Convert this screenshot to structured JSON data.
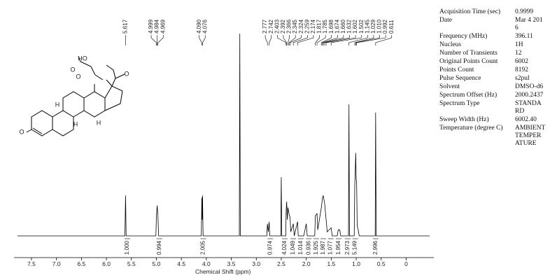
{
  "chart_data": {
    "type": "line",
    "xlabel": "Chemical Shift (ppm)",
    "xlim": [
      7.78,
      -0.47
    ],
    "xticks": [
      7.5,
      {
        "value": 7,
        "label": "7.0"
      },
      6.5,
      {
        "value": 6,
        "label": "6.0"
      },
      5.5,
      {
        "value": 5,
        "label": "5.0"
      },
      4.5,
      {
        "value": 4,
        "label": "4.0"
      },
      3.5,
      {
        "value": 3,
        "label": "3.0"
      },
      2.5,
      {
        "value": 2,
        "label": "2.0"
      },
      1.5,
      {
        "value": 1,
        "label": "1.0"
      },
      0.5,
      0
    ],
    "ylim": [
      0,
      100
    ],
    "color": "#000000",
    "x": [
      7.78,
      5.63,
      5.617,
      5.605,
      5.01,
      4.999,
      4.984,
      4.969,
      4.955,
      4.1,
      4.09,
      4.083,
      4.076,
      4.065,
      3.34,
      3.33,
      3.32,
      2.79,
      2.777,
      2.76,
      2.742,
      2.73,
      2.51,
      2.5,
      2.49,
      2.41,
      2.403,
      2.392,
      2.38,
      2.366,
      2.345,
      2.324,
      2.31,
      2.259,
      2.24,
      2.174,
      2.16,
      2.05,
      2.0,
      1.98,
      1.83,
      1.817,
      1.785,
      1.77,
      1.698,
      1.674,
      1.66,
      1.632,
      1.602,
      1.58,
      1.502,
      1.48,
      1.38,
      1.36,
      1.33,
      1.31,
      1.155,
      1.145,
      1.135,
      1.04,
      1.029,
      1.02,
      1.01,
      1.0,
      0.992,
      0.98,
      0.96,
      0.94,
      0.62,
      0.611,
      0.6,
      -0.47
    ],
    "values": [
      0,
      0,
      20,
      0,
      0,
      10,
      15,
      10,
      0,
      0,
      19,
      8,
      20,
      0,
      0,
      100,
      0,
      0,
      6,
      2,
      7,
      0,
      0,
      29,
      0,
      0,
      12,
      17,
      8,
      14,
      11,
      9,
      2,
      6,
      0,
      7,
      0,
      0,
      6,
      0,
      0,
      10,
      11,
      3,
      14,
      19,
      20,
      16,
      8,
      2,
      4,
      0,
      0,
      3,
      3,
      0,
      0,
      65,
      0,
      0,
      25,
      31,
      41,
      28,
      27,
      5,
      3,
      0,
      0,
      61,
      0,
      0
    ],
    "peak_labels": [
      "5.617",
      "4.999",
      "4.984",
      "4.969",
      "4.090",
      "4.076",
      "2.777",
      "2.742",
      "2.403",
      "2.392",
      "2.366",
      "2.345",
      "2.324",
      "2.259",
      "2.174",
      "1.817",
      "1.785",
      "1.698",
      "1.674",
      "1.660",
      "1.632",
      "1.602",
      "1.502",
      "1.145",
      "1.029",
      "1.010",
      "0.992",
      "0.611"
    ],
    "integrals": {
      "x": [
        5.58,
        4.94,
        4.06,
        2.72,
        2.43,
        2.26,
        2.11,
        1.95,
        1.8,
        1.66,
        1.51,
        1.35,
        1.17,
        1.02,
        0.61
      ],
      "values": [
        1,
        0.994,
        2.005,
        0.974,
        4.024,
        1.049,
        1.014,
        0.936,
        1.925,
        1.987,
        1.077,
        1.954,
        2.973,
        5.149,
        2.996
      ],
      "value_labels": [
        "1.000",
        "0.994",
        "2.005",
        "0.974",
        "4.024",
        "1.049",
        "1.014",
        "0.936",
        "1.925",
        "1.987",
        "1.077",
        "1.954",
        "2.973",
        "5.149",
        "2.996"
      ]
    },
    "structure_labels": [
      "O",
      "HO",
      "O",
      "O",
      "O",
      "H",
      "H",
      "H"
    ],
    "parameters": [
      {
        "name": "Acquisition Time (sec)",
        "value": "0.9999"
      },
      {
        "name": "Date",
        "value": "Mar 4 2016"
      },
      {
        "name": "Frequency (MHz)",
        "value": "396.11"
      },
      {
        "name": "Nucleus",
        "value": "1H"
      },
      {
        "name": "Number of Transients",
        "value": "12"
      },
      {
        "name": "Original Points Count",
        "value": "6002"
      },
      {
        "name": "Points Count",
        "value": "8192"
      },
      {
        "name": "Pulse Sequence",
        "value": "s2pul"
      },
      {
        "name": "Solvent",
        "value": "DMSO-d6"
      },
      {
        "name": "Spectrum Offset (Hz)",
        "value": "2000.2437"
      },
      {
        "name": "Spectrum Type",
        "value": "STANDARD"
      },
      {
        "name": "Sweep Width (Hz)",
        "value": "6002.40"
      },
      {
        "name": "Temperature (degree C)",
        "value": "AMBIENT TEMPERATURE"
      }
    ]
  }
}
